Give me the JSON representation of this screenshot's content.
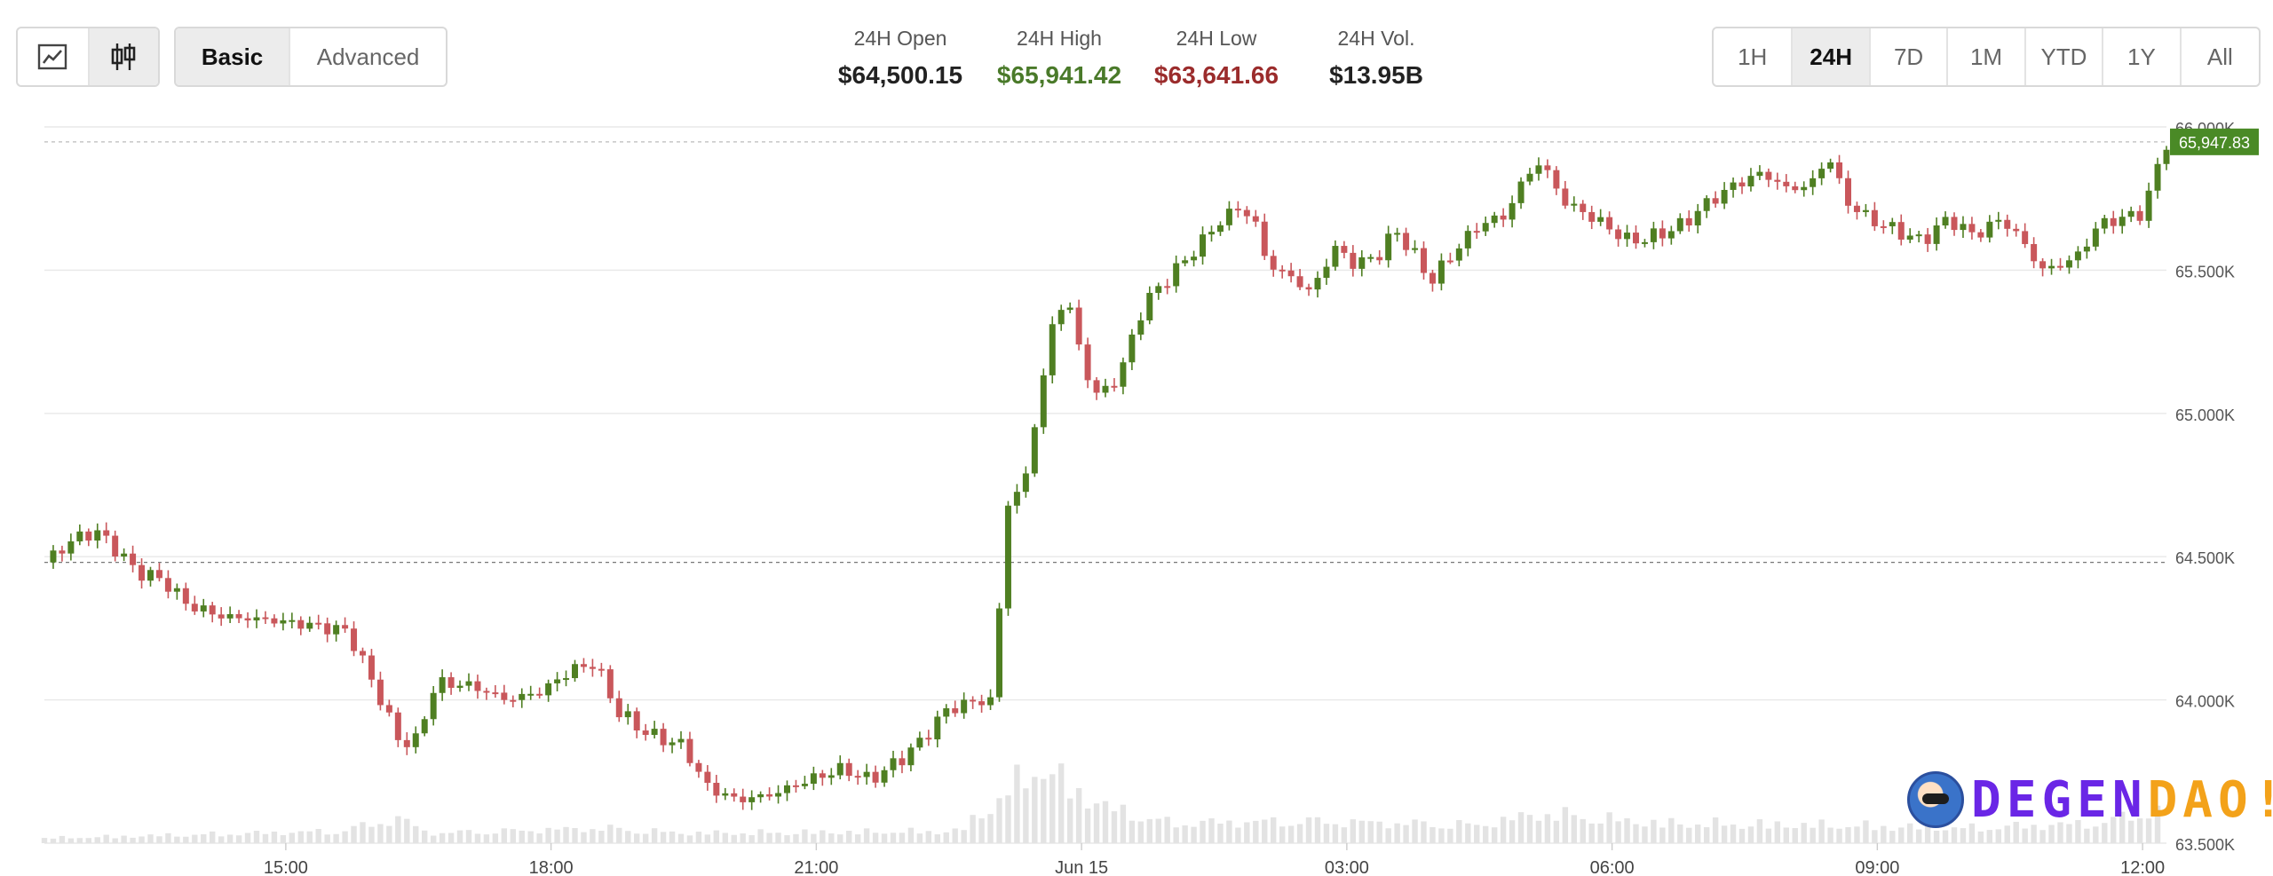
{
  "toolbar": {
    "chart_type_icons": [
      "line-chart-icon",
      "candlestick-icon"
    ],
    "active_chart_type": "candlestick-icon",
    "mode_options": [
      "Basic",
      "Advanced"
    ],
    "active_mode": "Basic",
    "ranges": [
      "1H",
      "24H",
      "7D",
      "1M",
      "YTD",
      "1Y",
      "All"
    ],
    "active_range": "24H"
  },
  "stats": {
    "open": {
      "label": "24H Open",
      "value": "$64,500.15",
      "color": "#222222"
    },
    "high": {
      "label": "24H High",
      "value": "$65,941.42",
      "color": "#4a7a2a"
    },
    "low": {
      "label": "24H Low",
      "value": "$63,641.66",
      "color": "#9b2c2c"
    },
    "vol": {
      "label": "24H Vol.",
      "value": "$13.95B",
      "color": "#222222"
    }
  },
  "colors": {
    "up": "#4f7f22",
    "down": "#c9575b",
    "volume": "#e3e3e3",
    "price_tag": "#4a8a26"
  },
  "logo": {
    "text_1": "DEGEN",
    "text_2": "DAO!"
  },
  "chart_data": {
    "type": "candlestick",
    "title": "",
    "xlabel": "",
    "ylabel": "",
    "ylim": [
      63500,
      66000
    ],
    "y_ticks": [
      63500,
      64000,
      64500,
      65000,
      65500,
      66000
    ],
    "y_tick_labels": [
      "63.500K",
      "64.000K",
      "64.500K",
      "65.000K",
      "65.500K",
      "66.000K"
    ],
    "x_ticks": [
      {
        "t": 15,
        "label": "15:00"
      },
      {
        "t": 18,
        "label": "18:00"
      },
      {
        "t": 21,
        "label": "21:00"
      },
      {
        "t": 24,
        "label": "Jun 15"
      },
      {
        "t": 27,
        "label": "03:00"
      },
      {
        "t": 30,
        "label": "06:00"
      },
      {
        "t": 33,
        "label": "09:00"
      },
      {
        "t": 36,
        "label": "12:00"
      }
    ],
    "x_range_hours": [
      12.27,
      36.27
    ],
    "open_reference_line": 64480,
    "current_price_line": 65947.83,
    "current_price_label": "65,947.83",
    "price_path": [
      [
        12.27,
        64480
      ],
      [
        12.6,
        64560
      ],
      [
        12.85,
        64590
      ],
      [
        13.1,
        64520
      ],
      [
        13.3,
        64450
      ],
      [
        13.6,
        64420
      ],
      [
        13.9,
        64330
      ],
      [
        14.3,
        64290
      ],
      [
        14.8,
        64280
      ],
      [
        15.3,
        64260
      ],
      [
        15.7,
        64240
      ],
      [
        16.05,
        64020
      ],
      [
        16.25,
        63870
      ],
      [
        16.45,
        63840
      ],
      [
        16.7,
        64060
      ],
      [
        17.1,
        64050
      ],
      [
        17.5,
        64000
      ],
      [
        17.9,
        64030
      ],
      [
        18.2,
        64100
      ],
      [
        18.5,
        64130
      ],
      [
        18.75,
        63960
      ],
      [
        19.1,
        63880
      ],
      [
        19.5,
        63840
      ],
      [
        19.75,
        63700
      ],
      [
        20.1,
        63650
      ],
      [
        20.5,
        63670
      ],
      [
        20.9,
        63720
      ],
      [
        21.3,
        63760
      ],
      [
        21.6,
        63720
      ],
      [
        21.9,
        63780
      ],
      [
        22.2,
        63860
      ],
      [
        22.45,
        63960
      ],
      [
        22.7,
        63990
      ],
      [
        23.0,
        64000
      ],
      [
        23.15,
        64680
      ],
      [
        23.35,
        64750
      ],
      [
        23.55,
        65100
      ],
      [
        23.7,
        65350
      ],
      [
        23.85,
        65400
      ],
      [
        24.0,
        65180
      ],
      [
        24.2,
        65050
      ],
      [
        24.45,
        65150
      ],
      [
        24.7,
        65380
      ],
      [
        25.0,
        65480
      ],
      [
        25.25,
        65560
      ],
      [
        25.5,
        65650
      ],
      [
        25.75,
        65720
      ],
      [
        25.95,
        65680
      ],
      [
        26.1,
        65520
      ],
      [
        26.35,
        65480
      ],
      [
        26.6,
        65420
      ],
      [
        26.85,
        65580
      ],
      [
        27.1,
        65520
      ],
      [
        27.35,
        65550
      ],
      [
        27.55,
        65640
      ],
      [
        27.75,
        65560
      ],
      [
        27.95,
        65460
      ],
      [
        28.2,
        65560
      ],
      [
        28.5,
        65660
      ],
      [
        28.8,
        65690
      ],
      [
        29.0,
        65820
      ],
      [
        29.2,
        65880
      ],
      [
        29.45,
        65740
      ],
      [
        29.8,
        65680
      ],
      [
        30.2,
        65600
      ],
      [
        30.5,
        65620
      ],
      [
        30.8,
        65660
      ],
      [
        31.1,
        65740
      ],
      [
        31.4,
        65800
      ],
      [
        31.7,
        65840
      ],
      [
        32.0,
        65780
      ],
      [
        32.25,
        65800
      ],
      [
        32.45,
        65900
      ],
      [
        32.65,
        65740
      ],
      [
        32.9,
        65680
      ],
      [
        33.2,
        65640
      ],
      [
        33.5,
        65600
      ],
      [
        33.8,
        65680
      ],
      [
        34.1,
        65620
      ],
      [
        34.4,
        65680
      ],
      [
        34.65,
        65600
      ],
      [
        34.85,
        65500
      ],
      [
        35.1,
        65520
      ],
      [
        35.3,
        65560
      ],
      [
        35.5,
        65660
      ],
      [
        35.75,
        65680
      ],
      [
        36.0,
        65700
      ],
      [
        36.15,
        65840
      ],
      [
        36.27,
        65947.83
      ]
    ],
    "volume_path": [
      [
        12.27,
        0.05
      ],
      [
        15.6,
        0.12
      ],
      [
        16.3,
        0.25
      ],
      [
        16.6,
        0.1
      ],
      [
        18.6,
        0.15
      ],
      [
        19.5,
        0.1
      ],
      [
        22.6,
        0.12
      ],
      [
        23.1,
        0.45
      ],
      [
        23.5,
        0.8
      ],
      [
        23.8,
        0.6
      ],
      [
        24.3,
        0.35
      ],
      [
        25.0,
        0.2
      ],
      [
        26.5,
        0.22
      ],
      [
        28.5,
        0.18
      ],
      [
        29.2,
        0.3
      ],
      [
        30.5,
        0.2
      ],
      [
        32.5,
        0.18
      ],
      [
        34.0,
        0.15
      ],
      [
        35.5,
        0.2
      ],
      [
        36.27,
        0.35
      ]
    ]
  }
}
